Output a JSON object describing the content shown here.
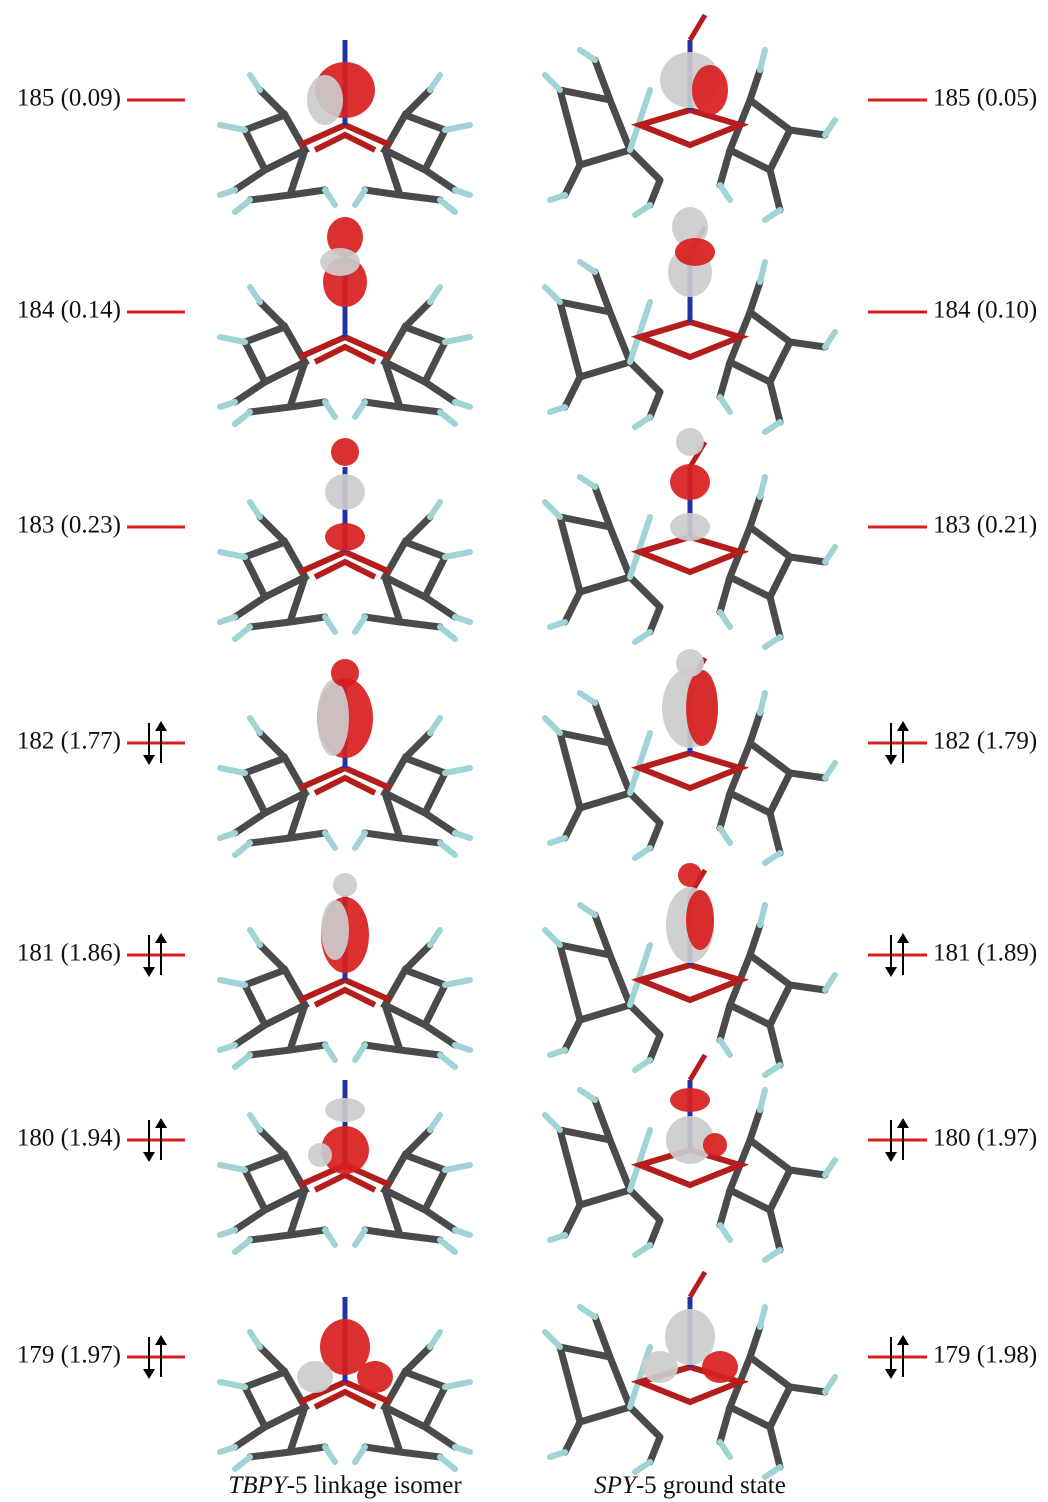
{
  "left_column": {
    "orbitals": [
      "185 (0.09)",
      "184 (0.14)",
      "183 (0.23)",
      "182 (1.77)",
      "181 (1.86)",
      "180 (1.94)",
      "179 (1.97)"
    ],
    "caption": {
      "italic": "TBPY",
      "text": "-5 linkage isomer"
    }
  },
  "right_column": {
    "orbitals": [
      "185 (0.05)",
      "184 (0.10)",
      "183 (0.21)",
      "182 (1.79)",
      "181 (1.89)",
      "180 (1.97)",
      "179 (1.98)"
    ],
    "caption": {
      "italic": "SPY",
      "text": "-5 ground state"
    }
  }
}
